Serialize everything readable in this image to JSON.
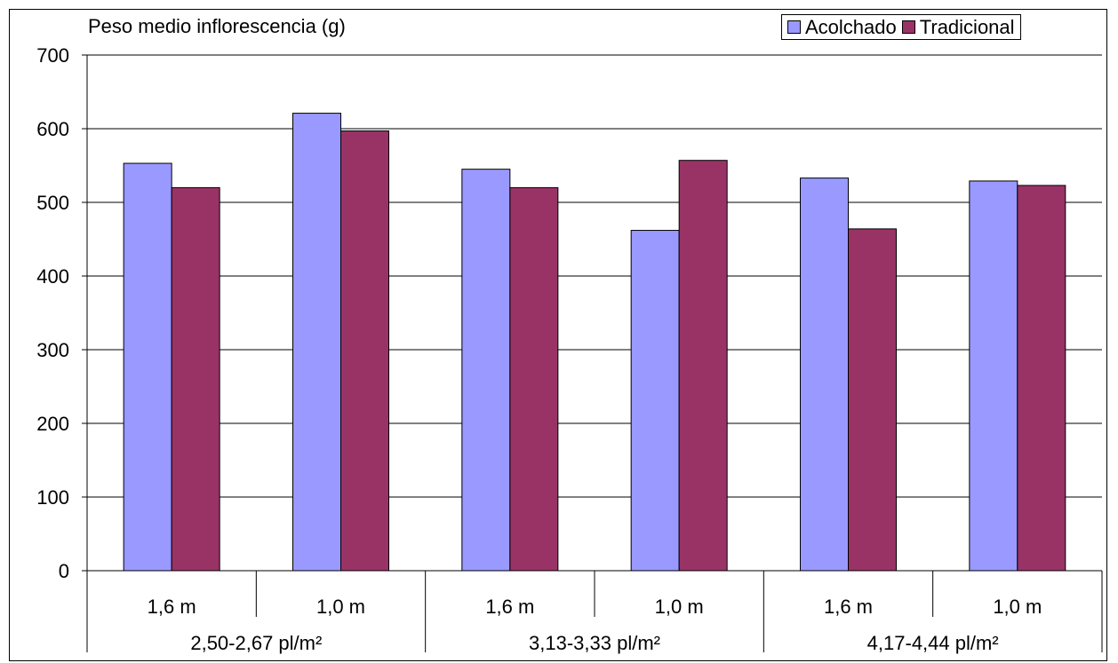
{
  "chart_data": {
    "type": "bar",
    "ylabel": "Peso medio inflorescencia (g)",
    "ylim": [
      0,
      700
    ],
    "yticks": [
      0,
      100,
      200,
      300,
      400,
      500,
      600,
      700
    ],
    "grid": true,
    "legend_position": "top-right",
    "categories": [
      "1,6 m",
      "1,0 m",
      "1,6 m",
      "1,0 m",
      "1,6 m",
      "1,0 m"
    ],
    "groups": [
      "2,50-2,67 pl/m²",
      "3,13-3,33 pl/m²",
      "4,17-4,44 pl/m²"
    ],
    "series": [
      {
        "name": "Acolchado",
        "color": "#9999ff",
        "values": [
          553,
          621,
          545,
          462,
          533,
          529
        ]
      },
      {
        "name": "Tradicional",
        "color": "#993366",
        "values": [
          520,
          597,
          520,
          557,
          464,
          523
        ]
      }
    ]
  }
}
